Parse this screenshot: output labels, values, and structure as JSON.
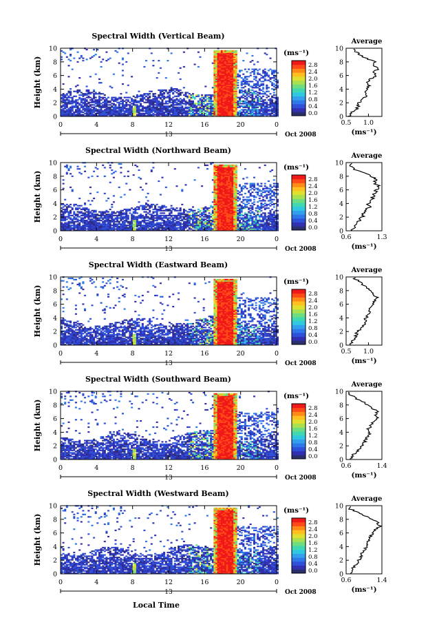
{
  "figure": {
    "xlabel": "Local Time",
    "date_label": "Oct 2008",
    "avg_title": "Average",
    "height_label": "Height (km)",
    "unit_label": "(ms⁻¹)"
  },
  "colorbar": {
    "colors": [
      "#2b2f6e",
      "#3030b0",
      "#2f50d8",
      "#2f78ea",
      "#33a0ee",
      "#2fc8e0",
      "#40d8b0",
      "#6edc80",
      "#a8e050",
      "#e0e030",
      "#ffc020",
      "#ff8a18",
      "#ff4a18",
      "#f01818"
    ],
    "tick_labels": [
      "0.0",
      "0.4",
      "0.8",
      "1.2",
      "1.6",
      "2.0",
      "2.4",
      "2.8"
    ]
  },
  "chart_data": [
    {
      "type": "heatmap",
      "title": "Spectral Width (Vertical Beam)",
      "xlabel": "Local Time",
      "ylabel": "Height (km)",
      "x_ticks": [
        "0",
        "4",
        "8",
        "12",
        "16",
        "20",
        "0"
      ],
      "x_mid_label": "13",
      "y_ticks": [
        "0",
        "2",
        "4",
        "6",
        "8",
        "10"
      ],
      "xlim": [
        0,
        24
      ],
      "ylim": [
        0,
        10
      ],
      "colorbar_range": [
        0.0,
        2.8
      ],
      "high_width_period": [
        16.8,
        19.4
      ],
      "profile": {
        "title": "Average",
        "xlabel": "(ms⁻¹)",
        "x_ticks": [
          "0.5",
          "1.0"
        ],
        "xlim": [
          0.5,
          1.3
        ],
        "heights": [
          0,
          0.5,
          1,
          1.5,
          2,
          2.5,
          3,
          3.5,
          4,
          4.5,
          5,
          5.5,
          6,
          6.5,
          7,
          7.5,
          8,
          8.5,
          9,
          9.5,
          10
        ],
        "values": [
          0.55,
          0.62,
          0.72,
          0.78,
          0.78,
          0.85,
          0.95,
          0.92,
          0.98,
          1.0,
          0.95,
          1.05,
          1.18,
          1.08,
          1.22,
          1.12,
          1.15,
          0.95,
          0.8,
          0.72,
          0.7
        ]
      }
    },
    {
      "type": "heatmap",
      "title": "Spectral Width (Northward Beam)",
      "xlabel": "Local Time",
      "ylabel": "Height (km)",
      "x_ticks": [
        "0",
        "4",
        "8",
        "12",
        "16",
        "20",
        "0"
      ],
      "x_mid_label": "13",
      "y_ticks": [
        "0",
        "2",
        "4",
        "6",
        "8",
        "10"
      ],
      "xlim": [
        0,
        24
      ],
      "ylim": [
        0,
        10
      ],
      "colorbar_range": [
        0.0,
        2.8
      ],
      "high_width_period": [
        16.8,
        19.4
      ],
      "profile": {
        "title": "Average",
        "xlabel": "(ms⁻¹)",
        "x_ticks": [
          "0.6",
          "1.3"
        ],
        "xlim": [
          0.6,
          1.3
        ],
        "heights": [
          0,
          0.5,
          1,
          1.5,
          2,
          2.5,
          3,
          3.5,
          4,
          4.5,
          5,
          5.5,
          6,
          6.5,
          7,
          7.5,
          8,
          8.5,
          9,
          9.5,
          10
        ],
        "values": [
          0.72,
          0.75,
          0.8,
          0.85,
          0.92,
          0.95,
          1.0,
          1.05,
          1.02,
          1.1,
          1.12,
          1.15,
          1.2,
          1.25,
          1.15,
          1.18,
          1.1,
          0.95,
          0.75,
          0.7,
          0.68
        ]
      }
    },
    {
      "type": "heatmap",
      "title": "Spectral Width (Eastward Beam)",
      "xlabel": "Local Time",
      "ylabel": "Height (km)",
      "x_ticks": [
        "0",
        "4",
        "8",
        "12",
        "16",
        "20",
        "0"
      ],
      "x_mid_label": "13",
      "y_ticks": [
        "0",
        "2",
        "4",
        "6",
        "8",
        "10"
      ],
      "xlim": [
        0,
        24
      ],
      "ylim": [
        0,
        10
      ],
      "colorbar_range": [
        0.0,
        2.8
      ],
      "high_width_period": [
        16.8,
        19.4
      ],
      "profile": {
        "title": "Average",
        "xlabel": "(ms⁻¹)",
        "x_ticks": [
          "0.5",
          "1.0"
        ],
        "xlim": [
          0.5,
          1.3
        ],
        "heights": [
          0,
          0.5,
          1,
          1.5,
          2,
          2.5,
          3,
          3.5,
          4,
          4.5,
          5,
          5.5,
          6,
          6.5,
          7,
          7.5,
          8,
          8.5,
          9,
          9.5,
          10
        ],
        "values": [
          0.6,
          0.62,
          0.7,
          0.72,
          0.75,
          0.85,
          0.9,
          0.92,
          0.95,
          1.0,
          1.02,
          1.05,
          1.12,
          1.15,
          1.18,
          1.1,
          1.05,
          0.95,
          0.85,
          0.75,
          0.65
        ]
      }
    },
    {
      "type": "heatmap",
      "title": "Spectral Width (Southward Beam)",
      "xlabel": "Local Time",
      "ylabel": "Height (km)",
      "x_ticks": [
        "0",
        "4",
        "8",
        "12",
        "16",
        "20",
        "0"
      ],
      "x_mid_label": "13",
      "y_ticks": [
        "0",
        "2",
        "4",
        "6",
        "8",
        "10"
      ],
      "xlim": [
        0,
        24
      ],
      "ylim": [
        0,
        10
      ],
      "colorbar_range": [
        0.0,
        2.8
      ],
      "high_width_period": [
        16.8,
        19.4
      ],
      "profile": {
        "title": "Average",
        "xlabel": "(ms⁻¹)",
        "x_ticks": [
          "0.6",
          "1.4"
        ],
        "xlim": [
          0.6,
          1.4
        ],
        "heights": [
          0,
          0.5,
          1,
          1.5,
          2,
          2.5,
          3,
          3.5,
          4,
          4.5,
          5,
          5.5,
          6,
          6.5,
          7,
          7.5,
          8,
          8.5,
          9,
          9.5,
          10
        ],
        "values": [
          0.72,
          0.75,
          0.8,
          0.88,
          0.95,
          1.0,
          1.05,
          1.1,
          1.12,
          1.1,
          1.15,
          1.2,
          1.3,
          1.25,
          1.3,
          1.2,
          1.1,
          0.95,
          0.8,
          0.7,
          0.66
        ]
      }
    },
    {
      "type": "heatmap",
      "title": "Spectral Width (Westward Beam)",
      "xlabel": "Local Time",
      "ylabel": "Height (km)",
      "x_ticks": [
        "0",
        "4",
        "8",
        "12",
        "16",
        "20",
        "0"
      ],
      "x_mid_label": "13",
      "y_ticks": [
        "0",
        "2",
        "4",
        "6",
        "8",
        "10"
      ],
      "xlim": [
        0,
        24
      ],
      "ylim": [
        0,
        10
      ],
      "colorbar_range": [
        0.0,
        2.8
      ],
      "high_width_period": [
        16.8,
        19.4
      ],
      "profile": {
        "title": "Average",
        "xlabel": "(ms⁻¹)",
        "x_ticks": [
          "0.6",
          "1.4"
        ],
        "xlim": [
          0.6,
          1.4
        ],
        "heights": [
          0,
          0.5,
          1,
          1.5,
          2,
          2.5,
          3,
          3.5,
          4,
          4.5,
          5,
          5.5,
          6,
          6.5,
          7,
          7.5,
          8,
          8.5,
          9,
          9.5,
          10
        ],
        "values": [
          0.7,
          0.72,
          0.78,
          0.85,
          0.88,
          0.92,
          0.95,
          1.0,
          1.05,
          1.08,
          1.1,
          1.15,
          1.2,
          1.25,
          1.35,
          1.3,
          1.2,
          1.05,
          0.85,
          0.7,
          0.65
        ]
      }
    }
  ]
}
